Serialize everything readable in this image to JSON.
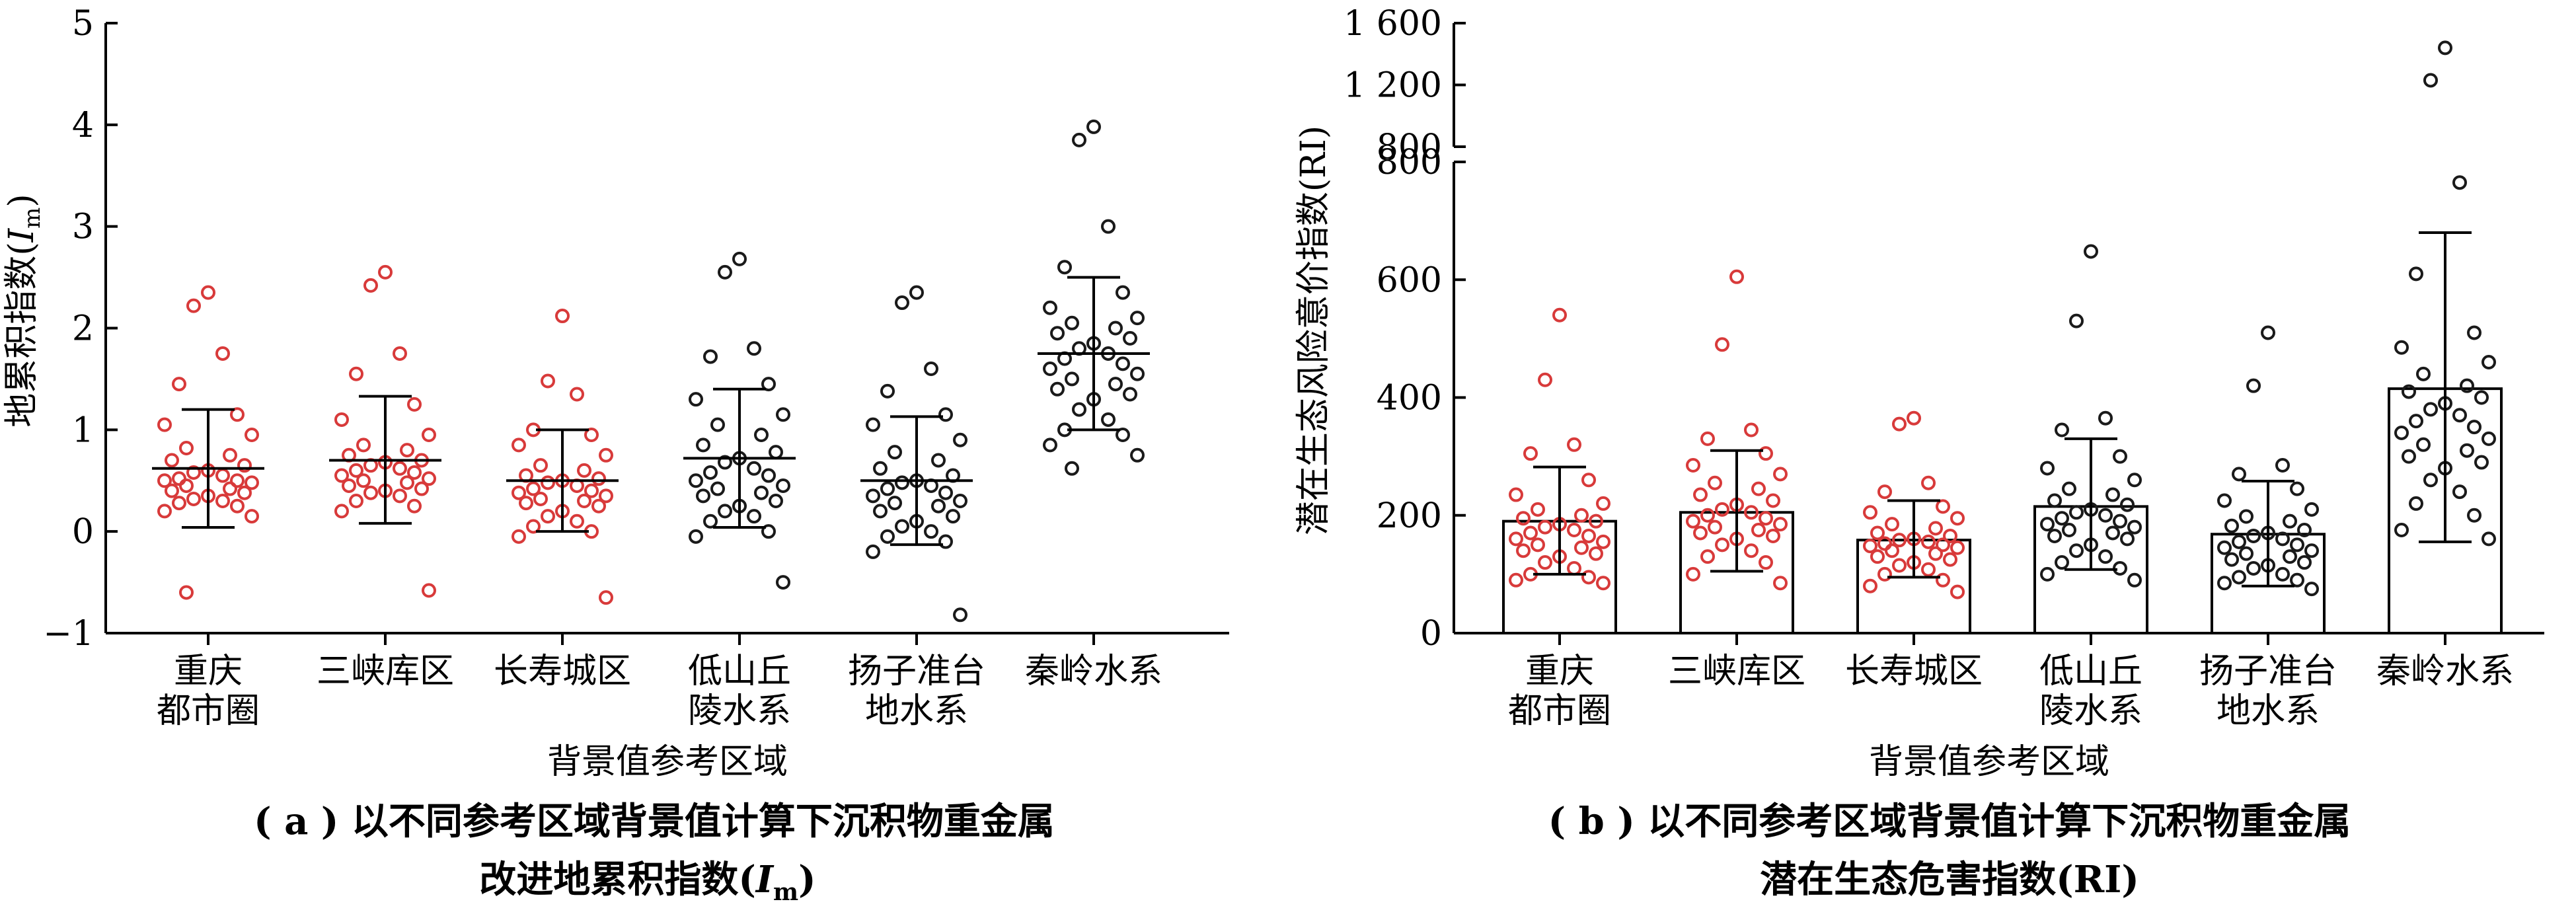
{
  "colors": {
    "red": "#d83a3a",
    "black": "#1a1a1a"
  },
  "categories": [
    "重庆\n都市圈",
    "三峡库区",
    "长寿城区",
    "低山丘\n陵水系",
    "扬子准台\n地水系",
    "秦岭水系"
  ],
  "chart_data": [
    {
      "type": "scatter",
      "caption_line1": "( a ) 以不同参考区域背景值计算下沉积物重金属",
      "caption_line2_pre": "改进地累积指数(",
      "caption_line2_i": "I",
      "caption_line2_sub": "m",
      "caption_line2_post": ")",
      "ylabel_pre": "地累积指数(",
      "ylabel_i": "I",
      "ylabel_sub": "m",
      "ylabel_post": ")",
      "xlabel": "背景值参考区域",
      "ylim": [
        -1,
        5
      ],
      "yticks": [
        "−1",
        "0",
        "1",
        "2",
        "3",
        "4",
        "5"
      ],
      "groups": [
        {
          "category": "重庆\n都市圈",
          "color": "red",
          "mean": 0.62,
          "sd_low": 0.04,
          "sd_high": 1.2,
          "values": [
            2.35,
            2.22,
            1.75,
            1.45,
            1.15,
            1.05,
            0.95,
            0.82,
            0.75,
            0.7,
            0.65,
            0.6,
            0.58,
            0.55,
            0.52,
            0.5,
            0.5,
            0.48,
            0.45,
            0.42,
            0.4,
            0.38,
            0.35,
            0.32,
            0.3,
            0.28,
            0.25,
            0.2,
            0.15,
            -0.6
          ]
        },
        {
          "category": "三峡库区",
          "color": "red",
          "mean": 0.7,
          "sd_low": 0.08,
          "sd_high": 1.33,
          "values": [
            2.55,
            2.42,
            1.75,
            1.55,
            1.25,
            1.1,
            0.95,
            0.85,
            0.8,
            0.75,
            0.7,
            0.68,
            0.65,
            0.62,
            0.6,
            0.58,
            0.55,
            0.52,
            0.5,
            0.48,
            0.45,
            0.42,
            0.4,
            0.38,
            0.35,
            0.3,
            0.25,
            0.2,
            -0.58
          ]
        },
        {
          "category": "长寿城区",
          "color": "red",
          "mean": 0.5,
          "sd_low": 0.0,
          "sd_high": 1.0,
          "values": [
            2.12,
            1.48,
            1.35,
            1.0,
            0.95,
            0.85,
            0.75,
            0.65,
            0.6,
            0.55,
            0.52,
            0.5,
            0.48,
            0.45,
            0.42,
            0.4,
            0.38,
            0.35,
            0.32,
            0.3,
            0.28,
            0.25,
            0.2,
            0.15,
            0.1,
            0.05,
            0.0,
            -0.05,
            -0.65
          ]
        },
        {
          "category": "低山丘\n陵水系",
          "color": "black",
          "mean": 0.72,
          "sd_low": 0.04,
          "sd_high": 1.4,
          "values": [
            2.68,
            2.55,
            1.8,
            1.72,
            1.45,
            1.3,
            1.15,
            1.05,
            0.95,
            0.85,
            0.78,
            0.72,
            0.68,
            0.62,
            0.58,
            0.55,
            0.5,
            0.45,
            0.42,
            0.38,
            0.35,
            0.3,
            0.25,
            0.2,
            0.15,
            0.1,
            0.0,
            -0.05,
            -0.5
          ]
        },
        {
          "category": "扬子准台\n地水系",
          "color": "black",
          "mean": 0.5,
          "sd_low": -0.13,
          "sd_high": 1.13,
          "values": [
            2.35,
            2.25,
            1.6,
            1.38,
            1.15,
            1.05,
            0.9,
            0.78,
            0.7,
            0.62,
            0.55,
            0.5,
            0.48,
            0.45,
            0.42,
            0.38,
            0.35,
            0.3,
            0.28,
            0.25,
            0.2,
            0.15,
            0.1,
            0.05,
            0.0,
            -0.05,
            -0.1,
            -0.2,
            -0.82
          ]
        },
        {
          "category": "秦岭水系",
          "color": "black",
          "mean": 1.75,
          "sd_low": 1.0,
          "sd_high": 2.5,
          "values": [
            3.98,
            3.85,
            3.0,
            2.6,
            2.35,
            2.2,
            2.1,
            2.05,
            2.0,
            1.95,
            1.9,
            1.85,
            1.8,
            1.75,
            1.7,
            1.65,
            1.6,
            1.55,
            1.5,
            1.45,
            1.4,
            1.35,
            1.3,
            1.2,
            1.1,
            1.0,
            0.95,
            0.85,
            0.75,
            0.62
          ]
        }
      ]
    },
    {
      "type": "bar",
      "caption_line1": "( b ) 以不同参考区域背景值计算下沉积物重金属",
      "caption_line2": "潜在生态危害指数(RI)",
      "ylabel": "潜在生态风险意价指数(RI)",
      "xlabel": "背景值参考区域",
      "ylim_lower": [
        0,
        800
      ],
      "yticks_lower": [
        "0",
        "200",
        "400",
        "600",
        "800"
      ],
      "ylim_upper": [
        800,
        1600
      ],
      "yticks_upper": [
        "800",
        "1 200",
        "1 600"
      ],
      "groups": [
        {
          "category": "重庆\n都市圈",
          "color": "red",
          "mean": 190,
          "sd_low": 100,
          "sd_high": 282,
          "values": [
            540,
            430,
            320,
            305,
            260,
            235,
            220,
            210,
            200,
            195,
            190,
            185,
            180,
            175,
            170,
            165,
            160,
            155,
            150,
            145,
            140,
            135,
            130,
            120,
            110,
            100,
            95,
            90,
            85
          ]
        },
        {
          "category": "三峡库区",
          "color": "red",
          "mean": 205,
          "sd_low": 105,
          "sd_high": 310,
          "values": [
            605,
            490,
            345,
            330,
            305,
            285,
            270,
            255,
            245,
            235,
            225,
            218,
            210,
            205,
            200,
            195,
            190,
            185,
            180,
            175,
            170,
            165,
            160,
            150,
            140,
            130,
            120,
            100,
            85
          ]
        },
        {
          "category": "长寿城区",
          "color": "red",
          "mean": 158,
          "sd_low": 95,
          "sd_high": 225,
          "values": [
            365,
            355,
            255,
            240,
            215,
            205,
            195,
            185,
            178,
            170,
            165,
            160,
            158,
            155,
            152,
            150,
            148,
            145,
            140,
            135,
            130,
            125,
            120,
            115,
            108,
            100,
            90,
            80,
            70
          ]
        },
        {
          "category": "低山丘\n陵水系",
          "color": "black",
          "mean": 215,
          "sd_low": 108,
          "sd_high": 330,
          "values": [
            648,
            530,
            365,
            345,
            300,
            280,
            260,
            245,
            235,
            225,
            218,
            210,
            205,
            200,
            195,
            190,
            185,
            180,
            175,
            170,
            165,
            160,
            150,
            140,
            130,
            120,
            110,
            100,
            90
          ]
        },
        {
          "category": "扬子准台\n地水系",
          "color": "black",
          "mean": 168,
          "sd_low": 80,
          "sd_high": 258,
          "values": [
            510,
            420,
            285,
            270,
            245,
            225,
            210,
            198,
            190,
            182,
            175,
            170,
            165,
            160,
            155,
            150,
            145,
            140,
            135,
            130,
            125,
            120,
            115,
            110,
            100,
            95,
            90,
            85,
            75
          ]
        },
        {
          "category": "秦岭水系",
          "color": "black",
          "mean": 415,
          "sd_low": 155,
          "sd_high": 680,
          "values": [
            1440,
            1230,
            765,
            610,
            510,
            485,
            460,
            440,
            420,
            410,
            400,
            390,
            380,
            370,
            360,
            350,
            340,
            330,
            320,
            310,
            300,
            290,
            280,
            260,
            240,
            220,
            200,
            175,
            160
          ]
        }
      ]
    }
  ]
}
